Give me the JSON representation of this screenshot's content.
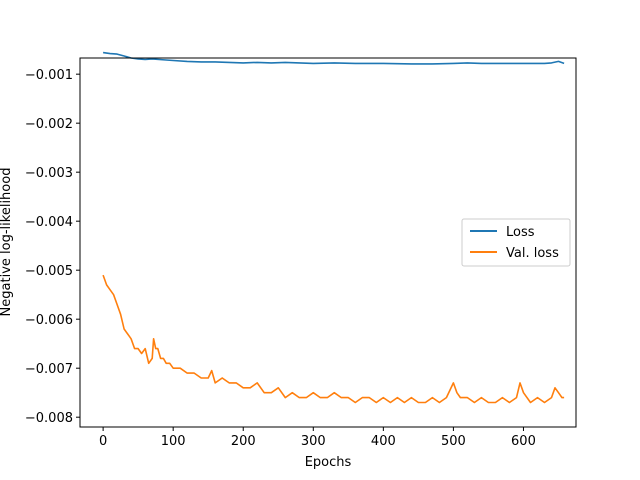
{
  "chart_data": {
    "type": "line",
    "xlabel": "Epochs",
    "ylabel": "Negative log-likelihood",
    "xlim": [
      -33,
      675
    ],
    "ylim": [
      -0.0082,
      -0.00067
    ],
    "xticks": [
      0,
      100,
      200,
      300,
      400,
      500,
      600
    ],
    "xtick_labels": [
      "0",
      "100",
      "200",
      "300",
      "400",
      "500",
      "600"
    ],
    "yticks": [
      -0.008,
      -0.007,
      -0.006,
      -0.005,
      -0.004,
      -0.003,
      -0.002,
      -0.001
    ],
    "ytick_labels": [
      "−0.008",
      "−0.007",
      "−0.006",
      "−0.005",
      "−0.004",
      "−0.003",
      "−0.002",
      "−0.001"
    ],
    "grid": false,
    "legend_position": "center-right",
    "series": [
      {
        "name": "Loss",
        "color": "#1f77b4",
        "x": [
          0,
          10,
          20,
          30,
          40,
          50,
          60,
          70,
          80,
          90,
          100,
          120,
          140,
          160,
          180,
          200,
          220,
          240,
          260,
          280,
          300,
          330,
          360,
          400,
          440,
          470,
          500,
          520,
          540,
          560,
          580,
          600,
          620,
          630,
          640,
          650,
          658
        ],
        "y": [
          -0.00056,
          -0.00058,
          -0.00059,
          -0.00063,
          -0.00067,
          -0.00069,
          -0.0007,
          -0.00069,
          -0.0007,
          -0.00071,
          -0.00072,
          -0.00074,
          -0.00075,
          -0.00075,
          -0.00076,
          -0.00077,
          -0.00076,
          -0.00077,
          -0.00076,
          -0.00077,
          -0.00078,
          -0.00077,
          -0.00078,
          -0.00078,
          -0.00079,
          -0.00079,
          -0.00078,
          -0.00077,
          -0.00078,
          -0.00078,
          -0.00078,
          -0.00078,
          -0.00078,
          -0.00078,
          -0.00077,
          -0.00074,
          -0.00078
        ]
      },
      {
        "name": "Val. loss",
        "color": "#ff7f0e",
        "x": [
          0,
          5,
          10,
          15,
          20,
          25,
          30,
          35,
          40,
          45,
          50,
          55,
          60,
          65,
          70,
          72,
          75,
          78,
          82,
          86,
          90,
          95,
          100,
          110,
          120,
          130,
          140,
          150,
          155,
          160,
          170,
          180,
          190,
          200,
          210,
          220,
          230,
          240,
          250,
          260,
          270,
          280,
          290,
          300,
          310,
          320,
          330,
          340,
          350,
          360,
          370,
          380,
          390,
          400,
          410,
          420,
          430,
          440,
          450,
          460,
          470,
          480,
          490,
          500,
          505,
          510,
          520,
          530,
          540,
          550,
          560,
          570,
          580,
          590,
          595,
          600,
          610,
          620,
          630,
          640,
          645,
          650,
          655,
          658
        ],
        "y": [
          -0.0051,
          -0.0053,
          -0.0054,
          -0.0055,
          -0.0057,
          -0.0059,
          -0.0062,
          -0.0063,
          -0.0064,
          -0.0066,
          -0.0066,
          -0.0067,
          -0.0066,
          -0.0069,
          -0.0068,
          -0.0064,
          -0.0066,
          -0.0066,
          -0.0068,
          -0.0068,
          -0.0069,
          -0.0069,
          -0.007,
          -0.007,
          -0.0071,
          -0.0071,
          -0.0072,
          -0.0072,
          -0.00705,
          -0.0073,
          -0.0072,
          -0.0073,
          -0.0073,
          -0.0074,
          -0.0074,
          -0.0073,
          -0.0075,
          -0.0075,
          -0.0074,
          -0.0076,
          -0.0075,
          -0.0076,
          -0.0076,
          -0.0075,
          -0.0076,
          -0.0076,
          -0.0075,
          -0.0076,
          -0.0076,
          -0.0077,
          -0.0076,
          -0.0076,
          -0.0077,
          -0.0076,
          -0.0077,
          -0.0076,
          -0.0077,
          -0.0076,
          -0.0077,
          -0.0077,
          -0.0076,
          -0.0077,
          -0.0076,
          -0.0073,
          -0.0075,
          -0.0076,
          -0.0076,
          -0.0077,
          -0.0076,
          -0.0077,
          -0.0077,
          -0.0076,
          -0.0077,
          -0.0076,
          -0.0073,
          -0.0075,
          -0.0077,
          -0.0076,
          -0.0077,
          -0.0076,
          -0.0074,
          -0.0075,
          -0.0076,
          -0.0076
        ]
      }
    ]
  }
}
